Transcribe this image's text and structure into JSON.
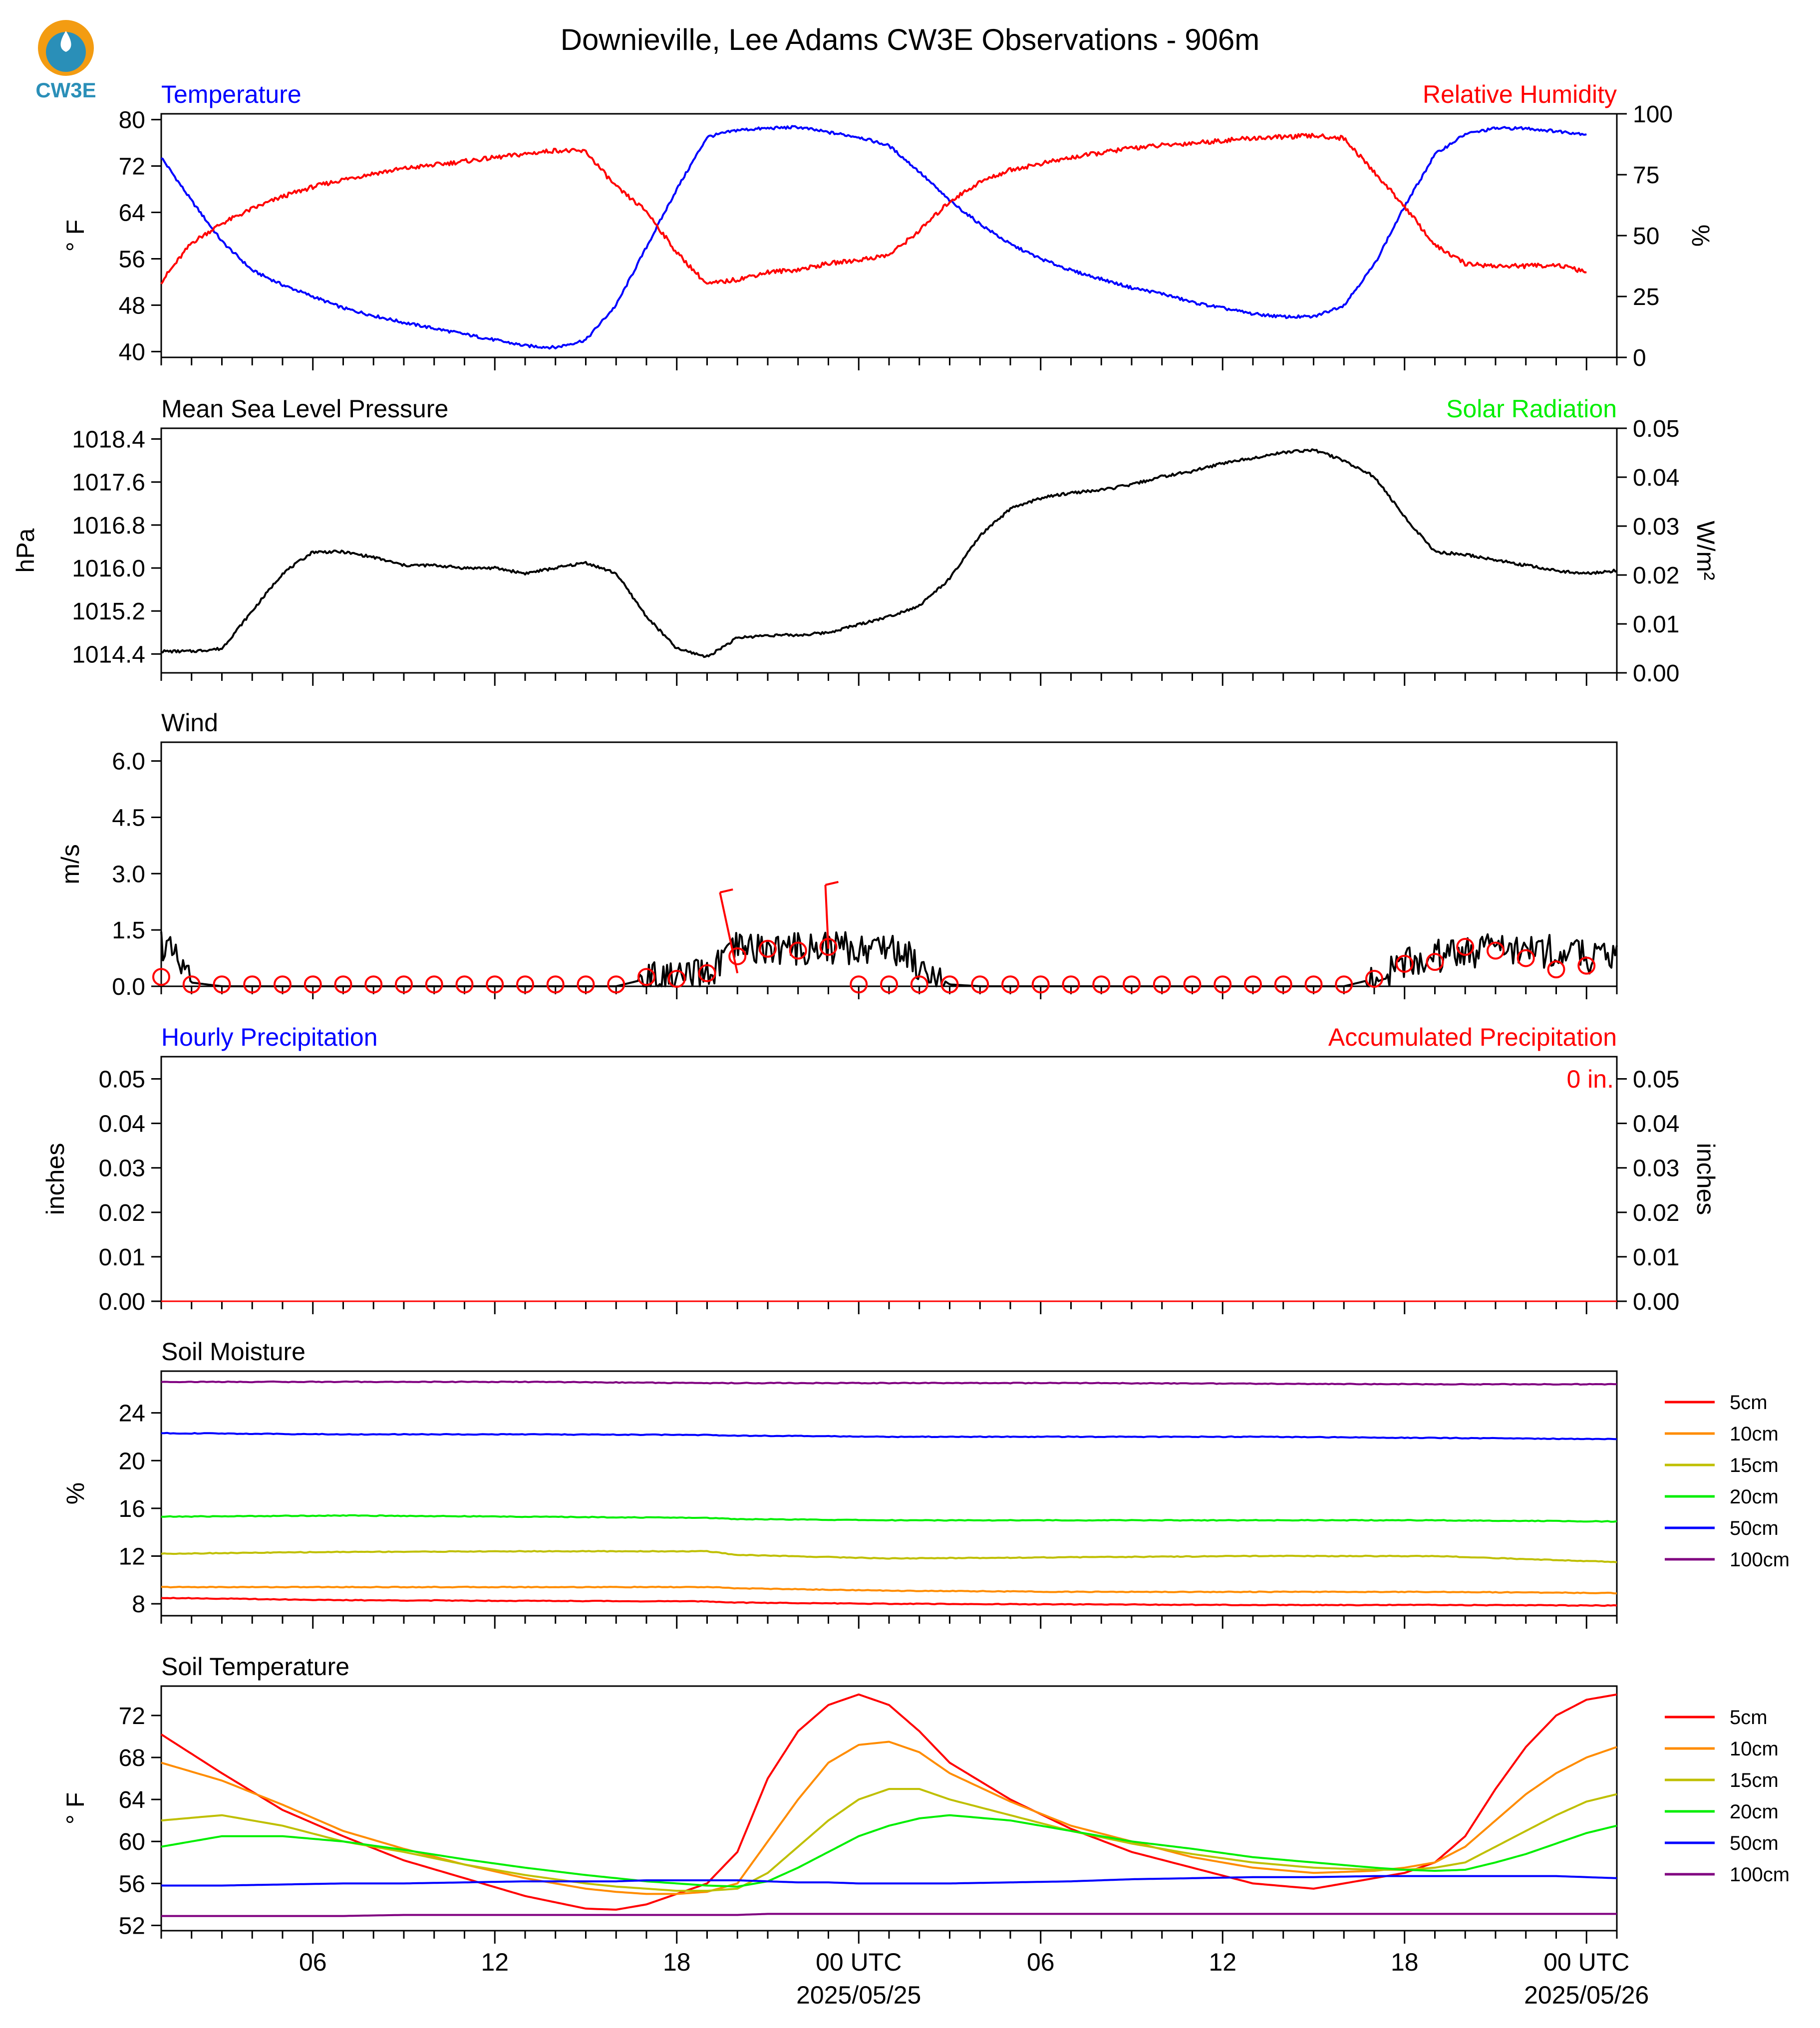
{
  "title": "Downieville, Lee Adams CW3E Observations - 906m",
  "logo_text": "CW3E",
  "x_axis": {
    "ticks": [
      "06",
      "12",
      "18",
      "00 UTC",
      "06",
      "12",
      "18",
      "00 UTC"
    ],
    "dates": [
      "2025/05/25",
      "2025/05/26"
    ]
  },
  "colors": {
    "temperature": "#0000ff",
    "humidity": "#ff0000",
    "pressure": "#000000",
    "solar": "#00ee00",
    "wind": "#000000",
    "barb": "#ff0000",
    "precip_hourly": "#0000ff",
    "precip_accum": "#ff0000"
  },
  "chart_data": [
    {
      "panel": "temperature-humidity",
      "type": "line",
      "title_left": "Temperature",
      "title_right": "Relative Humidity",
      "ylabel_left": "° F",
      "ylabel_right": "%",
      "ylim_left": [
        39,
        81
      ],
      "ylim_right": [
        0,
        100
      ],
      "yticks_left": [
        "40",
        "48",
        "56",
        "64",
        "72",
        "80"
      ],
      "yticks_right": [
        "0",
        "25",
        "50",
        "75",
        "100"
      ],
      "x_hours": [
        1,
        2,
        3,
        4,
        5,
        6,
        7,
        8,
        9,
        10,
        11,
        12,
        13,
        14,
        15,
        16,
        17,
        18,
        19,
        20,
        21,
        22,
        23,
        24,
        25,
        26,
        27,
        28,
        29,
        30,
        31,
        32,
        33,
        34,
        35,
        36,
        37,
        38,
        39,
        40,
        41,
        42,
        43,
        44,
        45,
        46,
        47,
        48
      ],
      "series": [
        {
          "name": "Temperature",
          "axis": "left",
          "color": "#0000ff",
          "values": [
            73.5,
            66,
            59,
            54,
            51.5,
            49.5,
            47.5,
            46.2,
            45,
            44,
            43,
            42,
            41,
            40.7,
            42,
            48,
            58,
            68,
            77,
            78.2,
            78.5,
            78.7,
            77.8,
            77,
            75.5,
            71,
            66,
            62,
            58.5,
            56,
            54,
            52.5,
            51,
            50,
            48.5,
            47.5,
            46.5,
            46,
            46,
            48,
            55,
            65,
            74,
            77.5,
            78.5,
            78.5,
            78,
            77.5
          ]
        },
        {
          "name": "Relative Humidity",
          "axis": "right",
          "color": "#ff0000",
          "values": [
            31,
            47,
            55,
            61,
            66,
            70,
            73,
            75.5,
            77.5,
            79,
            80.5,
            82,
            83.5,
            85,
            84.5,
            70,
            60,
            43,
            30,
            32,
            35,
            36,
            38.5,
            40,
            42,
            52,
            64,
            72,
            77,
            79.5,
            82,
            84,
            86,
            87,
            88,
            89,
            90,
            90.5,
            91,
            90,
            76,
            62,
            46,
            38.5,
            37.5,
            37.5,
            38,
            35
          ]
        }
      ]
    },
    {
      "panel": "pressure-solar",
      "type": "line",
      "title_left": "Mean Sea Level Pressure",
      "title_right": "Solar Radiation",
      "ylabel_left": "hPa",
      "ylabel_right": "W/m²",
      "ylim_left": [
        1014.05,
        1018.6
      ],
      "ylim_right": [
        0,
        0.05
      ],
      "yticks_left": [
        "1014.4",
        "1015.2",
        "1016.0",
        "1016.8",
        "1017.6",
        "1018.4"
      ],
      "yticks_right": [
        "0.00",
        "0.01",
        "0.02",
        "0.03",
        "0.04",
        "0.05"
      ],
      "x_hours": [
        0,
        1,
        2,
        3,
        4,
        5,
        6,
        7,
        8,
        9,
        10,
        11,
        12,
        13,
        14,
        15,
        16,
        17,
        18,
        19,
        20,
        21,
        22,
        23,
        24,
        25,
        26,
        27,
        28,
        29,
        30,
        31,
        32,
        33,
        34,
        35,
        36,
        37,
        38,
        39,
        40,
        41,
        42,
        43,
        44,
        45,
        46,
        47,
        48
      ],
      "series": [
        {
          "name": "Mean Sea Level Pressure",
          "axis": "left",
          "color": "#000000",
          "values": [
            1014.45,
            1014.45,
            1014.5,
            1015.2,
            1015.9,
            1016.3,
            1016.3,
            1016.2,
            1016.05,
            1016.05,
            1016.0,
            1016.0,
            1015.9,
            1016.0,
            1016.1,
            1015.9,
            1015.1,
            1014.5,
            1014.35,
            1014.7,
            1014.75,
            1014.75,
            1014.8,
            1014.95,
            1015.1,
            1015.3,
            1015.8,
            1016.6,
            1017.1,
            1017.3,
            1017.4,
            1017.45,
            1017.55,
            1017.7,
            1017.8,
            1017.95,
            1018.05,
            1018.15,
            1018.2,
            1018.0,
            1017.7,
            1016.95,
            1016.3,
            1016.25,
            1016.15,
            1016.05,
            1015.95,
            1015.9,
            1015.95
          ]
        }
      ]
    },
    {
      "panel": "wind",
      "type": "line",
      "title_left": "Wind",
      "ylabel_left": "m/s",
      "ylim_left": [
        0,
        6.5
      ],
      "yticks_left": [
        "0.0",
        "1.5",
        "3.0",
        "4.5",
        "6.0"
      ],
      "x_hours": [
        0,
        1,
        2,
        3,
        4,
        5,
        6,
        7,
        8,
        9,
        10,
        11,
        12,
        13,
        14,
        15,
        16,
        17,
        18,
        19,
        20,
        21,
        22,
        23,
        24,
        25,
        26,
        27,
        28,
        29,
        30,
        31,
        32,
        33,
        34,
        35,
        36,
        37,
        38,
        39,
        40,
        41,
        42,
        43,
        44,
        45,
        46,
        47,
        48
      ],
      "series": [
        {
          "name": "Wind",
          "axis": "left",
          "color": "#000000",
          "values": [
            1.2,
            0.1,
            0,
            0,
            0,
            0,
            0,
            0,
            0,
            0,
            0,
            0,
            0,
            0,
            0,
            0,
            0.2,
            0.2,
            0.3,
            1.0,
            1.0,
            1.0,
            1.05,
            1.0,
            1.1,
            0.6,
            0.05,
            0,
            0,
            0,
            0,
            0,
            0,
            0,
            0,
            0,
            0,
            0,
            0,
            0,
            0.2,
            0.6,
            0.8,
            0.9,
            1.0,
            1.0,
            0.9,
            0.8,
            0.7
          ]
        },
        {
          "name": "Wind barbs",
          "axis": "left",
          "color": "#ff0000",
          "values": [
            0.25,
            0.05,
            0.05,
            0.05,
            0.05,
            0.05,
            0.05,
            0.05,
            0.05,
            0.05,
            0.05,
            0.05,
            0.05,
            0.05,
            0.05,
            0.05,
            0.25,
            0.2,
            0.35,
            0.8,
            1.0,
            0.95,
            1.05,
            0.05,
            0.05,
            0.05,
            0.05,
            0.05,
            0.05,
            0.05,
            0.05,
            0.05,
            0.05,
            0.05,
            0.05,
            0.05,
            0.05,
            0.05,
            0.05,
            0.05,
            0.2,
            0.6,
            0.65,
            1.05,
            0.95,
            0.75,
            0.45,
            0.55
          ]
        }
      ]
    },
    {
      "panel": "precipitation",
      "type": "line",
      "title_left": "Hourly Precipitation",
      "title_right": "Accumulated Precipitation",
      "annotation": "0 in.",
      "ylabel_left": "inches",
      "ylabel_right": "inches",
      "ylim_left": [
        0,
        0.055
      ],
      "ylim_right": [
        0,
        0.055
      ],
      "yticks_left": [
        "0.00",
        "0.01",
        "0.02",
        "0.03",
        "0.04",
        "0.05"
      ],
      "yticks_right": [
        "0.00",
        "0.01",
        "0.02",
        "0.03",
        "0.04",
        "0.05"
      ],
      "x_hours": [
        0,
        48
      ],
      "series": [
        {
          "name": "Hourly Precipitation",
          "axis": "left",
          "color": "#0000ff",
          "values": [
            0,
            0
          ]
        },
        {
          "name": "Accumulated Precipitation",
          "axis": "right",
          "color": "#ff0000",
          "values": [
            0,
            0
          ]
        }
      ]
    },
    {
      "panel": "soil-moisture",
      "type": "line",
      "title_left": "Soil Moisture",
      "ylabel_left": "%",
      "ylim_left": [
        7,
        27.5
      ],
      "yticks_left": [
        "8",
        "12",
        "16",
        "20",
        "24"
      ],
      "x_hours": [
        0,
        6,
        12,
        18,
        19,
        24,
        30,
        36,
        42,
        48
      ],
      "series": [
        {
          "name": "5cm",
          "color": "#ff0000",
          "values": [
            8.5,
            8.3,
            8.25,
            8.2,
            8.1,
            8.0,
            7.95,
            7.9,
            7.9,
            7.85
          ]
        },
        {
          "name": "10cm",
          "color": "#ff8c00",
          "values": [
            9.4,
            9.4,
            9.4,
            9.4,
            9.3,
            9.1,
            9.0,
            9.0,
            9.0,
            8.9
          ]
        },
        {
          "name": "15cm",
          "color": "#bfbf00",
          "values": [
            12.2,
            12.35,
            12.4,
            12.4,
            12.1,
            11.8,
            11.9,
            12.0,
            12.0,
            11.5
          ]
        },
        {
          "name": "20cm",
          "color": "#00ee00",
          "values": [
            15.3,
            15.4,
            15.3,
            15.2,
            15.1,
            15.0,
            15.0,
            15.0,
            15.0,
            14.9
          ]
        },
        {
          "name": "50cm",
          "color": "#0000ff",
          "values": [
            22.3,
            22.2,
            22.2,
            22.15,
            22.1,
            22.0,
            22.0,
            22.0,
            21.9,
            21.8
          ]
        },
        {
          "name": "100cm",
          "color": "#800080",
          "values": [
            26.6,
            26.6,
            26.6,
            26.5,
            26.5,
            26.5,
            26.5,
            26.45,
            26.4,
            26.4
          ]
        }
      ]
    },
    {
      "panel": "soil-temperature",
      "type": "line",
      "title_left": "Soil Temperature",
      "ylabel_left": "° F",
      "ylim_left": [
        51.5,
        74.8
      ],
      "yticks_left": [
        "52",
        "56",
        "60",
        "64",
        "68",
        "72"
      ],
      "x_hours": [
        0,
        2,
        4,
        6,
        8,
        10,
        12,
        14,
        15,
        16,
        17,
        18,
        19,
        20,
        21,
        22,
        23,
        24,
        25,
        26,
        28,
        30,
        32,
        34,
        36,
        38,
        40,
        41,
        42,
        43,
        44,
        45,
        46,
        47,
        48
      ],
      "series": [
        {
          "name": "5cm",
          "color": "#ff0000",
          "values": [
            70.2,
            66.5,
            63.0,
            60.5,
            58.2,
            56.5,
            54.8,
            53.6,
            53.5,
            54.0,
            55.0,
            56.0,
            59.0,
            66.0,
            70.5,
            73.0,
            74.0,
            73.0,
            70.5,
            67.5,
            64.0,
            61.2,
            59.0,
            57.5,
            56.0,
            55.5,
            56.5,
            57.0,
            58.0,
            60.5,
            65.0,
            69.0,
            72.0,
            73.5,
            74.0
          ]
        },
        {
          "name": "10cm",
          "color": "#ff8c00",
          "values": [
            67.5,
            65.8,
            63.5,
            61.0,
            59.3,
            57.8,
            56.5,
            55.5,
            55.2,
            55.0,
            55.0,
            55.2,
            56.0,
            60.0,
            64.0,
            67.5,
            69.2,
            69.5,
            68.5,
            66.5,
            63.8,
            61.5,
            60.0,
            58.5,
            57.5,
            57.0,
            57.2,
            57.5,
            58.0,
            59.5,
            62.0,
            64.5,
            66.5,
            68.0,
            69.0
          ]
        },
        {
          "name": "15cm",
          "color": "#bfbf00",
          "values": [
            62.0,
            62.5,
            61.5,
            60.0,
            59.0,
            57.8,
            56.8,
            56.0,
            55.7,
            55.5,
            55.3,
            55.3,
            55.5,
            57.0,
            59.5,
            62.0,
            64.0,
            65.0,
            65.0,
            64.0,
            62.5,
            61.0,
            59.8,
            58.8,
            58.0,
            57.5,
            57.3,
            57.3,
            57.5,
            58.0,
            59.5,
            61.0,
            62.5,
            63.8,
            64.5
          ]
        },
        {
          "name": "20cm",
          "color": "#00ee00",
          "values": [
            59.5,
            60.5,
            60.5,
            60.0,
            59.2,
            58.3,
            57.5,
            56.8,
            56.5,
            56.2,
            56.0,
            55.8,
            55.7,
            56.2,
            57.5,
            59.0,
            60.5,
            61.5,
            62.2,
            62.5,
            62.0,
            61.0,
            60.0,
            59.3,
            58.5,
            58.0,
            57.5,
            57.3,
            57.2,
            57.3,
            58.0,
            58.8,
            59.8,
            60.8,
            61.5
          ]
        },
        {
          "name": "50cm",
          "color": "#0000ff",
          "values": [
            55.8,
            55.8,
            55.9,
            56.0,
            56.0,
            56.1,
            56.2,
            56.2,
            56.2,
            56.3,
            56.3,
            56.3,
            56.3,
            56.2,
            56.1,
            56.1,
            56.0,
            56.0,
            56.0,
            56.0,
            56.1,
            56.2,
            56.4,
            56.5,
            56.6,
            56.6,
            56.7,
            56.7,
            56.7,
            56.7,
            56.7,
            56.7,
            56.7,
            56.6,
            56.5
          ]
        },
        {
          "name": "100cm",
          "color": "#800080",
          "values": [
            52.9,
            52.9,
            52.9,
            52.9,
            53.0,
            53.0,
            53.0,
            53.0,
            53.0,
            53.0,
            53.0,
            53.0,
            53.0,
            53.1,
            53.1,
            53.1,
            53.1,
            53.1,
            53.1,
            53.1,
            53.1,
            53.1,
            53.1,
            53.1,
            53.1,
            53.1,
            53.1,
            53.1,
            53.1,
            53.1,
            53.1,
            53.1,
            53.1,
            53.1,
            53.1
          ]
        }
      ]
    }
  ]
}
